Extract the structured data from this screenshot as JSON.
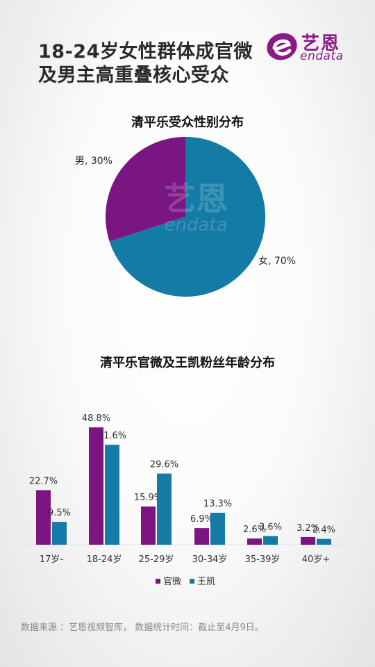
{
  "header": {
    "title_line1": "18-24岁女性群体成官微",
    "title_line2": "及男主高重叠核心受众"
  },
  "logo": {
    "cn": "艺恩",
    "en": "endata"
  },
  "colors": {
    "purple": "#7b1582",
    "blue": "#137ba6"
  },
  "chart_data": [
    {
      "type": "pie",
      "title": "清平乐受众性别分布",
      "slices": [
        {
          "label": "男, 30%",
          "value": 30,
          "color": "#7b1582"
        },
        {
          "label": "女, 70%",
          "value": 70,
          "color": "#137ba6"
        }
      ]
    },
    {
      "type": "bar",
      "title": "清平乐官微及王凯粉丝年龄分布",
      "categories": [
        "17岁-",
        "18-24岁",
        "25-29岁",
        "30-34岁",
        "35-39岁",
        "40岁+"
      ],
      "series": [
        {
          "name": "官微",
          "color": "#7b1582",
          "values": [
            22.7,
            48.8,
            15.9,
            6.9,
            2.6,
            3.2
          ],
          "labels": [
            "22.7%",
            "48.8%",
            "15.9%",
            "6.9%",
            "2.6%",
            "3.2%"
          ]
        },
        {
          "name": "王凯",
          "color": "#137ba6",
          "values": [
            9.5,
            41.6,
            29.6,
            13.3,
            3.6,
            2.4
          ],
          "labels": [
            "9.5%",
            "41.6%",
            "29.6%",
            "13.3%",
            "3.6%",
            "2.4%"
          ]
        }
      ],
      "legend": "bottom-center",
      "ylim": [
        0,
        55
      ]
    }
  ],
  "footer": {
    "source": "数据来源 ：艺恩视频智库， 数据统计时间：截止至4月9日。"
  }
}
